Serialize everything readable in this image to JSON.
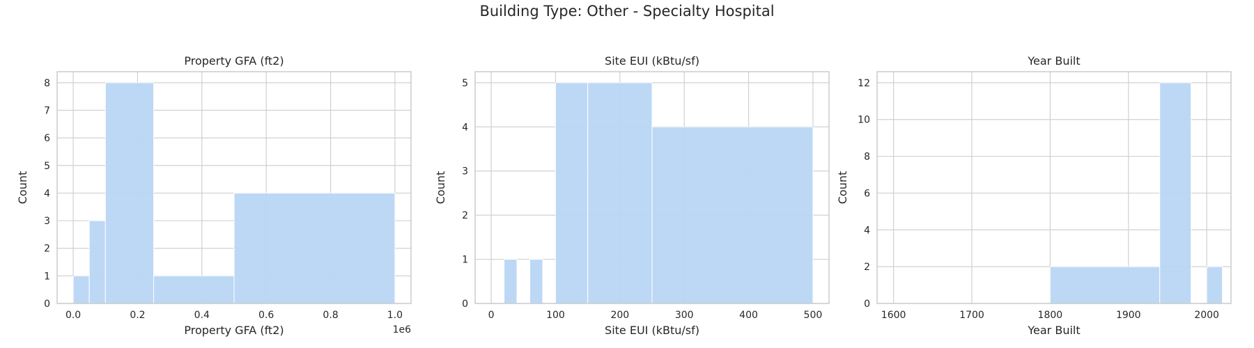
{
  "suptitle": "Building Type: Other - Specialty Hospital",
  "colors": {
    "bar": "#b8d6f4",
    "grid": "#d0d0d0",
    "frame": "#cccccc"
  },
  "chart_data": [
    {
      "type": "bar",
      "title": "Property GFA (ft2)",
      "xlabel": "Property GFA (ft2)",
      "ylabel": "Count",
      "offset_text": "1e6",
      "xlim": [
        -50000,
        1050000
      ],
      "ylim": [
        0,
        8.4
      ],
      "xticks": [
        0,
        200000,
        400000,
        600000,
        800000,
        1000000
      ],
      "xtick_labels": [
        "0.0",
        "0.2",
        "0.4",
        "0.6",
        "0.8",
        "1.0"
      ],
      "yticks": [
        0,
        1,
        2,
        3,
        4,
        5,
        6,
        7,
        8
      ],
      "bins": [
        {
          "x0": 0,
          "x1": 50000,
          "count": 1
        },
        {
          "x0": 50000,
          "x1": 100000,
          "count": 3
        },
        {
          "x0": 100000,
          "x1": 250000,
          "count": 8
        },
        {
          "x0": 250000,
          "x1": 500000,
          "count": 1
        },
        {
          "x0": 500000,
          "x1": 1000000,
          "count": 4
        }
      ],
      "grid": true
    },
    {
      "type": "bar",
      "title": "Site EUI (kBtu/sf)",
      "xlabel": "Site EUI (kBtu/sf)",
      "ylabel": "Count",
      "xlim": [
        -25,
        525
      ],
      "ylim": [
        0,
        5.25
      ],
      "xticks": [
        0,
        100,
        200,
        300,
        400,
        500
      ],
      "xtick_labels": [
        "0",
        "100",
        "200",
        "300",
        "400",
        "500"
      ],
      "yticks": [
        0,
        1,
        2,
        3,
        4,
        5
      ],
      "bins": [
        {
          "x0": 20,
          "x1": 40,
          "count": 1
        },
        {
          "x0": 60,
          "x1": 80,
          "count": 1
        },
        {
          "x0": 100,
          "x1": 150,
          "count": 5
        },
        {
          "x0": 150,
          "x1": 250,
          "count": 5
        },
        {
          "x0": 250,
          "x1": 500,
          "count": 4
        }
      ],
      "grid": true
    },
    {
      "type": "bar",
      "title": "Year Built",
      "xlabel": "Year Built",
      "ylabel": "Count",
      "xlim": [
        1579,
        2031
      ],
      "ylim": [
        0,
        12.6
      ],
      "xticks": [
        1600,
        1700,
        1800,
        1900,
        2000
      ],
      "xtick_labels": [
        "1600",
        "1700",
        "1800",
        "1900",
        "2000"
      ],
      "yticks": [
        0,
        2,
        4,
        6,
        8,
        10,
        12
      ],
      "bins": [
        {
          "x0": 1800,
          "x1": 1940,
          "count": 2
        },
        {
          "x0": 1940,
          "x1": 1980,
          "count": 12
        },
        {
          "x0": 2000,
          "x1": 2020,
          "count": 2
        }
      ],
      "grid": true
    }
  ]
}
